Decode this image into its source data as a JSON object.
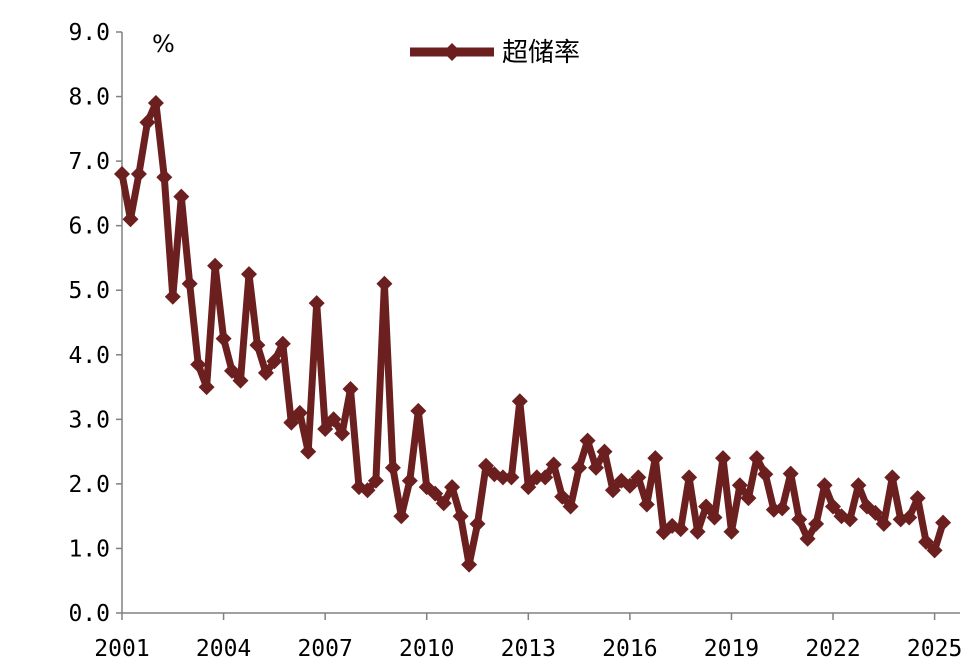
{
  "chart_data": {
    "type": "line",
    "title": "",
    "xlabel": "",
    "ylabel": "%",
    "ylim": [
      0,
      9
    ],
    "xlim": [
      2001,
      2025.75
    ],
    "yticks": [
      "0.0",
      "1.0",
      "2.0",
      "3.0",
      "4.0",
      "5.0",
      "6.0",
      "7.0",
      "8.0",
      "9.0"
    ],
    "xticks": [
      "2001",
      "2004",
      "2007",
      "2010",
      "2013",
      "2016",
      "2019",
      "2022",
      "2025"
    ],
    "grid": false,
    "legend": "top-center",
    "series": [
      {
        "name": "超储率",
        "color": "#6B1F1F",
        "marker": "diamond",
        "x": [
          "2001Q1",
          "2001Q2",
          "2001Q3",
          "2001Q4",
          "2002Q1",
          "2002Q2",
          "2002Q3",
          "2002Q4",
          "2003Q1",
          "2003Q2",
          "2003Q3",
          "2003Q4",
          "2004Q1",
          "2004Q2",
          "2004Q3",
          "2004Q4",
          "2005Q1",
          "2005Q2",
          "2005Q3",
          "2005Q4",
          "2006Q1",
          "2006Q2",
          "2006Q3",
          "2006Q4",
          "2007Q1",
          "2007Q2",
          "2007Q3",
          "2007Q4",
          "2008Q1",
          "2008Q2",
          "2008Q3",
          "2008Q4",
          "2009Q1",
          "2009Q2",
          "2009Q3",
          "2009Q4",
          "2010Q1",
          "2010Q2",
          "2010Q3",
          "2010Q4",
          "2011Q1",
          "2011Q2",
          "2011Q3",
          "2011Q4",
          "2012Q1",
          "2012Q2",
          "2012Q3",
          "2012Q4",
          "2013Q1",
          "2013Q2",
          "2013Q3",
          "2013Q4",
          "2014Q1",
          "2014Q2",
          "2014Q3",
          "2014Q4",
          "2015Q1",
          "2015Q2",
          "2015Q3",
          "2015Q4",
          "2016Q1",
          "2016Q2",
          "2016Q3",
          "2016Q4",
          "2017Q1",
          "2017Q2",
          "2017Q3",
          "2017Q4",
          "2018Q1",
          "2018Q2",
          "2018Q3",
          "2018Q4",
          "2019Q1",
          "2019Q2",
          "2019Q3",
          "2019Q4",
          "2020Q1",
          "2020Q2",
          "2020Q3",
          "2020Q4",
          "2021Q1",
          "2021Q2",
          "2021Q3",
          "2021Q4",
          "2022Q1",
          "2022Q2",
          "2022Q3",
          "2022Q4",
          "2023Q1",
          "2023Q2",
          "2023Q3",
          "2023Q4",
          "2024Q1",
          "2024Q2",
          "2024Q3",
          "2024Q4",
          "2025Q1",
          "2025Q2"
        ],
        "values": [
          6.8,
          6.1,
          6.8,
          7.6,
          7.9,
          6.75,
          4.9,
          6.45,
          5.1,
          3.85,
          3.5,
          5.38,
          4.25,
          3.75,
          3.6,
          5.25,
          4.15,
          3.72,
          3.9,
          4.17,
          2.95,
          3.1,
          2.5,
          4.8,
          2.85,
          3.0,
          2.78,
          3.47,
          1.95,
          1.9,
          2.05,
          5.1,
          2.25,
          1.5,
          2.05,
          3.13,
          1.95,
          1.85,
          1.7,
          1.95,
          1.5,
          0.75,
          1.38,
          2.28,
          2.15,
          2.1,
          2.1,
          3.28,
          1.95,
          2.1,
          2.1,
          2.3,
          1.8,
          1.65,
          2.25,
          2.67,
          2.25,
          2.5,
          1.9,
          2.05,
          1.97,
          2.1,
          1.68,
          2.4,
          1.25,
          1.35,
          1.3,
          2.1,
          1.26,
          1.65,
          1.48,
          2.4,
          1.26,
          1.98,
          1.78,
          2.4,
          2.15,
          1.6,
          1.62,
          2.16,
          1.45,
          1.15,
          1.38,
          1.98,
          1.65,
          1.5,
          1.45,
          1.98,
          1.65,
          1.55,
          1.38,
          2.1,
          1.45,
          1.48,
          1.78,
          1.1,
          0.97,
          1.4
        ]
      }
    ]
  }
}
